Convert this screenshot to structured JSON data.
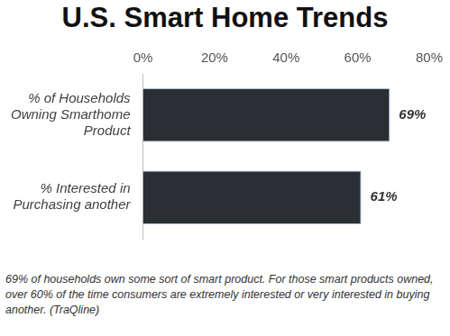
{
  "chart_data": {
    "type": "bar",
    "title": "U.S. Smart Home Trends",
    "orientation": "horizontal",
    "categories": [
      "% of Households Owning Smarthome Product",
      "% Interested in Purchasing another"
    ],
    "values": [
      69,
      61
    ],
    "value_labels": [
      "69%",
      "61%"
    ],
    "data_labels": true,
    "color": "#2b2f34",
    "xlim": [
      0,
      80
    ],
    "xticks": [
      {
        "value": 0,
        "label": "0%"
      },
      {
        "value": 20,
        "label": "20%"
      },
      {
        "value": 40,
        "label": "40%"
      },
      {
        "value": 60,
        "label": "60%"
      },
      {
        "value": 80,
        "label": "80%"
      }
    ],
    "grid": false,
    "annotations": [
      "69% of households own some sort of smart product. For those smart products owned, over 60% of the time consumers are extremely interested or very interested in buying another. (TraQline)"
    ]
  }
}
